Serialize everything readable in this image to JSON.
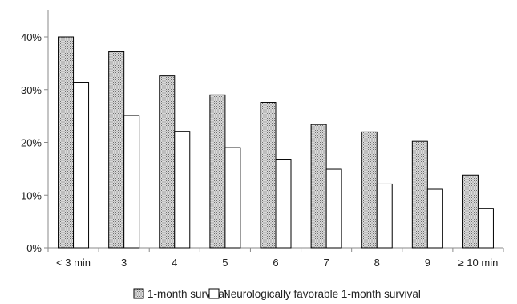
{
  "chart_data": {
    "type": "bar",
    "categories": [
      "< 3 min",
      "3",
      "4",
      "5",
      "6",
      "7",
      "8",
      "9",
      "≥ 10 min"
    ],
    "series": [
      {
        "name": "1-month survival",
        "values": [
          40.0,
          37.2,
          32.6,
          29.0,
          27.6,
          23.4,
          22.0,
          20.2,
          13.8
        ],
        "fill": "dotted-gray"
      },
      {
        "name": "Neurologically favorable 1-month survival",
        "values": [
          31.4,
          25.1,
          22.1,
          19.0,
          16.8,
          14.9,
          12.1,
          11.1,
          7.5
        ],
        "fill": "#ffffff"
      }
    ],
    "title": "",
    "xlabel": "",
    "ylabel": "",
    "ylim": [
      0,
      40
    ],
    "yticks": [
      "0%",
      "10%",
      "20%",
      "30%",
      "40%"
    ],
    "grid": false,
    "legend_position": "bottom"
  }
}
